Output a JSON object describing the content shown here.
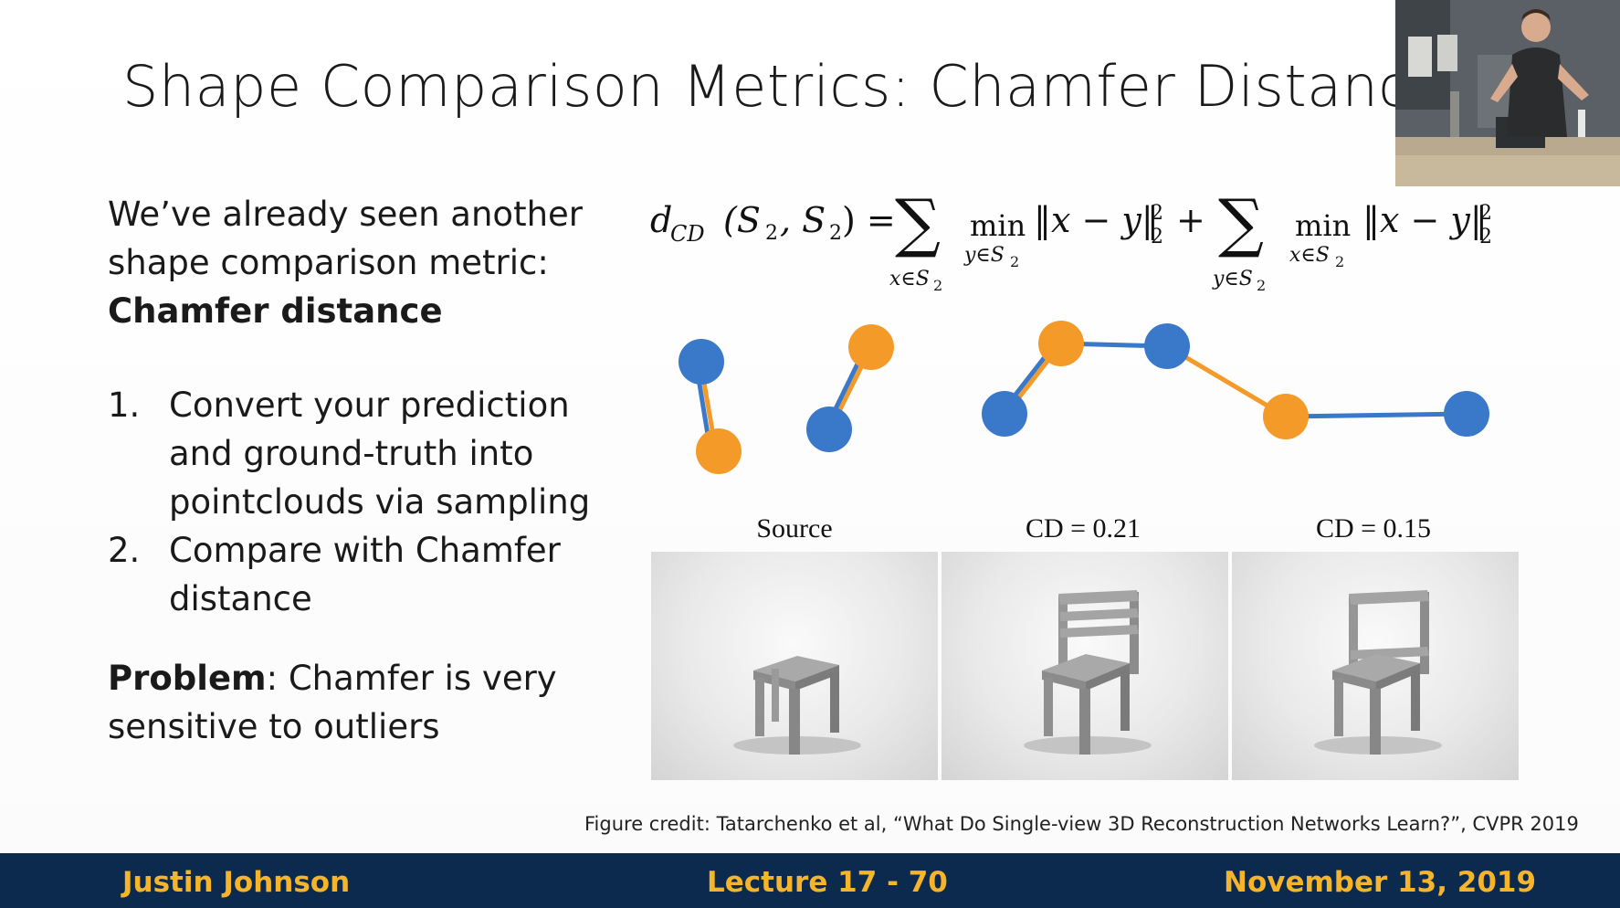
{
  "slide": {
    "title": "Shape Comparison Metrics: Chamfer Distance",
    "intro_line1": "We’ve already seen another",
    "intro_line2": "shape comparison metric:",
    "intro_bold": "Chamfer distance",
    "list": [
      {
        "num": "1.",
        "lines": [
          "Convert your prediction",
          "and ground-truth into",
          "pointclouds via sampling"
        ]
      },
      {
        "num": "2.",
        "lines": [
          "Compare with Chamfer",
          "distance"
        ]
      }
    ],
    "problem_bold": "Problem",
    "problem_rest": ": Chamfer is very",
    "problem_line2": "sensitive to outliers"
  },
  "formula": {
    "lhs": "d",
    "lhs_sub": "CD",
    "args": "(S",
    "sum_sub_1": "x∈S",
    "min_1": "min",
    "min_sub_1": "y∈S",
    "norm_1": "‖x − y‖",
    "plus": "+",
    "sum_sub_2": "y∈S",
    "min_2": "min",
    "min_sub_2": "x∈S",
    "norm_2": "‖x − y‖",
    "sup": "2",
    "sub": "2"
  },
  "figure": {
    "labels": [
      "Source",
      "CD = 0.21",
      "CD = 0.15"
    ],
    "colors": {
      "blue": "#3a78c9",
      "orange": "#f39a28"
    }
  },
  "credit": "Figure credit: Tatarchenko et al, “What Do Single-view 3D Reconstruction Networks Learn?”, CVPR 2019",
  "footer": {
    "name": "Justin Johnson",
    "lecture": "Lecture 17 - 70",
    "date": "November 13, 2019"
  }
}
